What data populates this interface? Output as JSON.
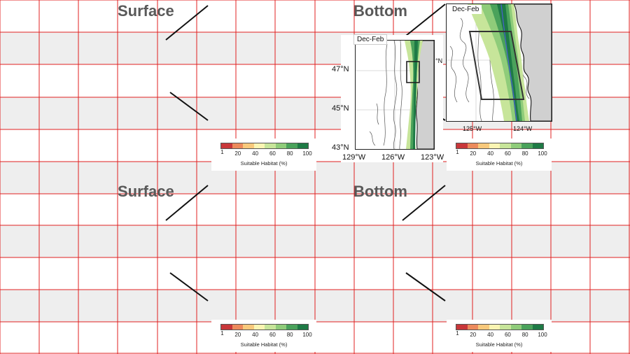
{
  "titles": {
    "top_left": "Surface",
    "top_right": "Bottom",
    "bottom_left": "Surface",
    "bottom_right": "Bottom"
  },
  "colorbar": {
    "label": "Suitable Habitat (%)",
    "ticks": [
      "1",
      "20",
      "40",
      "60",
      "80",
      "100"
    ],
    "colors": [
      "#c8373a",
      "#ec8a5c",
      "#f8c97c",
      "#fbf5b3",
      "#c7e59a",
      "#8fcc7a",
      "#4aa25b",
      "#1e7a45"
    ]
  },
  "main_map": {
    "season": "Dec-Feb",
    "lat_labels": [
      "47°N",
      "45°N",
      "43°N"
    ],
    "lon_labels": [
      "129°W",
      "126°W",
      "123°W"
    ]
  },
  "inset_map": {
    "season": "Dec-Feb",
    "lat_label": "°N",
    "lon_labels": [
      "125°W",
      "124°W"
    ]
  },
  "colors": {
    "grid_line": "#e02020",
    "band_fill": "#eeeeee",
    "land": "#d0d0d0",
    "title_gray": "#595959"
  }
}
